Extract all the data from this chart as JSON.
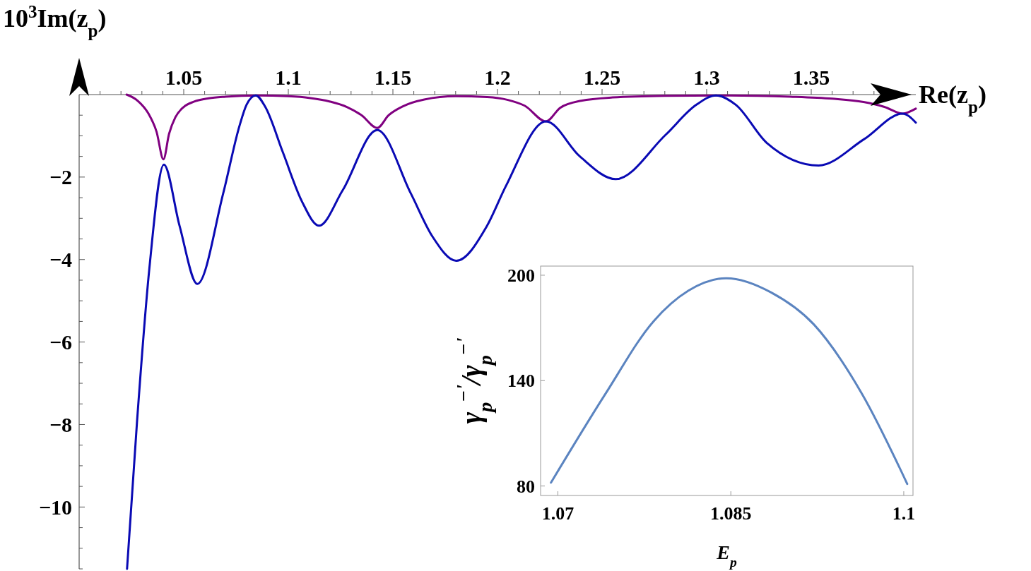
{
  "chart_data": [
    {
      "type": "line",
      "xlabel": "Re(z$_{p}$)",
      "ylabel": "10$^{3}$Im(z$_{p}$)",
      "xlim": [
        1.0,
        1.4
      ],
      "ylim": [
        -11.5,
        0
      ],
      "xticks": [
        {
          "value": 1.01,
          "label": null
        },
        {
          "value": 1.02,
          "label": null
        },
        {
          "value": 1.03,
          "label": null
        },
        {
          "value": 1.04,
          "label": null
        },
        1.05,
        {
          "value": 1.06,
          "label": null
        },
        {
          "value": 1.07,
          "label": null
        },
        {
          "value": 1.08,
          "label": null
        },
        {
          "value": 1.09,
          "label": null
        },
        1.1,
        {
          "value": 1.11,
          "label": null
        },
        {
          "value": 1.12,
          "label": null
        },
        {
          "value": 1.13,
          "label": null
        },
        {
          "value": 1.14,
          "label": null
        },
        1.15,
        {
          "value": 1.16,
          "label": null
        },
        {
          "value": 1.17,
          "label": null
        },
        {
          "value": 1.18,
          "label": null
        },
        {
          "value": 1.19,
          "label": null
        },
        1.2,
        {
          "value": 1.21,
          "label": null
        },
        {
          "value": 1.22,
          "label": null
        },
        {
          "value": 1.23,
          "label": null
        },
        {
          "value": 1.24,
          "label": null
        },
        1.25,
        {
          "value": 1.26,
          "label": null
        },
        {
          "value": 1.27,
          "label": null
        },
        {
          "value": 1.28,
          "label": null
        },
        {
          "value": 1.29,
          "label": null
        },
        1.3,
        {
          "value": 1.31,
          "label": null
        },
        {
          "value": 1.32,
          "label": null
        },
        {
          "value": 1.33,
          "label": null
        },
        {
          "value": 1.34,
          "label": null
        },
        1.35,
        {
          "value": 1.36,
          "label": null
        },
        {
          "value": 1.37,
          "label": null
        },
        {
          "value": 1.38,
          "label": null
        },
        {
          "value": 1.39,
          "label": null
        }
      ],
      "yticks": [
        {
          "value": -0.5,
          "label": null
        },
        {
          "value": -1,
          "label": null
        },
        {
          "value": -1.5,
          "label": null
        },
        {
          "value": -2,
          "label": "−2"
        },
        {
          "value": -2.5,
          "label": null
        },
        {
          "value": -3,
          "label": null
        },
        {
          "value": -3.5,
          "label": null
        },
        {
          "value": -4,
          "label": "−4"
        },
        {
          "value": -4.5,
          "label": null
        },
        {
          "value": -5,
          "label": null
        },
        {
          "value": -5.5,
          "label": null
        },
        {
          "value": -6,
          "label": "−6"
        },
        {
          "value": -6.5,
          "label": null
        },
        {
          "value": -7,
          "label": null
        },
        {
          "value": -7.5,
          "label": null
        },
        {
          "value": -8,
          "label": "−8"
        },
        {
          "value": -8.5,
          "label": null
        },
        {
          "value": -9,
          "label": null
        },
        {
          "value": -9.5,
          "label": null
        },
        {
          "value": -10,
          "label": "−10"
        },
        {
          "value": -10.5,
          "label": null
        },
        {
          "value": -11,
          "label": null
        },
        {
          "value": -11.5,
          "label": null
        }
      ],
      "series": [
        {
          "color": "#800080",
          "x": [
            1.0227,
            1.028,
            1.033,
            1.037,
            1.0403,
            1.043,
            1.046,
            1.05,
            1.055,
            1.062,
            1.07,
            1.085,
            1.1,
            1.11,
            1.12,
            1.128,
            1.135,
            1.1425,
            1.148,
            1.155,
            1.165,
            1.18,
            1.195,
            1.205,
            1.213,
            1.2232,
            1.23,
            1.24,
            1.255,
            1.28,
            1.31,
            1.34,
            1.36,
            1.375,
            1.385,
            1.3937,
            1.4
          ],
          "values": [
            0,
            -0.15,
            -0.45,
            -0.9,
            -1.57,
            -0.95,
            -0.55,
            -0.3,
            -0.17,
            -0.09,
            -0.05,
            -0.02,
            -0.04,
            -0.08,
            -0.17,
            -0.3,
            -0.5,
            -0.81,
            -0.5,
            -0.28,
            -0.12,
            -0.04,
            -0.06,
            -0.13,
            -0.27,
            -0.65,
            -0.32,
            -0.15,
            -0.07,
            -0.03,
            -0.02,
            -0.05,
            -0.1,
            -0.18,
            -0.3,
            -0.46,
            -0.34
          ]
        },
        {
          "color": "#0a0ab4",
          "x": [
            1.0229,
            1.0277,
            1.0336,
            1.0405,
            1.048,
            1.0565,
            1.0689,
            1.0767,
            1.08,
            1.0844,
            1.089,
            1.0974,
            1.1065,
            1.1147,
            1.126,
            1.1425,
            1.1585,
            1.1689,
            1.1803,
            1.1948,
            1.2041,
            1.2232,
            1.2394,
            1.2565,
            1.2803,
            1.295,
            1.3045,
            1.314,
            1.3287,
            1.3535,
            1.3753,
            1.3937,
            1.4
          ],
          "values": [
            -11.5,
            -7.91,
            -4.2,
            -1.7,
            -3.18,
            -4.59,
            -2.39,
            -0.75,
            -0.25,
            -0.02,
            -0.3,
            -1.4,
            -2.59,
            -3.18,
            -2.32,
            -0.86,
            -2.39,
            -3.44,
            -4.03,
            -3.2,
            -2.21,
            -0.65,
            -1.5,
            -2.05,
            -0.98,
            -0.25,
            -0.02,
            -0.25,
            -1.17,
            -1.72,
            -1.08,
            -0.46,
            -0.68
          ]
        }
      ]
    },
    {
      "type": "line",
      "xlabel": "E$_{p}$",
      "ylabel": "γ$_{p}$$^{−'}$/γ$_{p}$$^{−'}$",
      "xlim": [
        1.0685,
        1.1008
      ],
      "ylim": [
        74.6,
        205.2
      ],
      "xticks": [
        1.07,
        1.085,
        1.1
      ],
      "yticks": [
        80,
        140,
        200
      ],
      "series": [
        {
          "color": "#5b84c0",
          "x": [
            1.0694,
            1.0741,
            1.0783,
            1.0813,
            1.0846,
            1.0885,
            1.0922,
            1.0964,
            1.1003
          ],
          "values": [
            81.9,
            132.2,
            173.8,
            191.1,
            198.3,
            190.2,
            172,
            132.2,
            81.2
          ]
        }
      ]
    }
  ]
}
